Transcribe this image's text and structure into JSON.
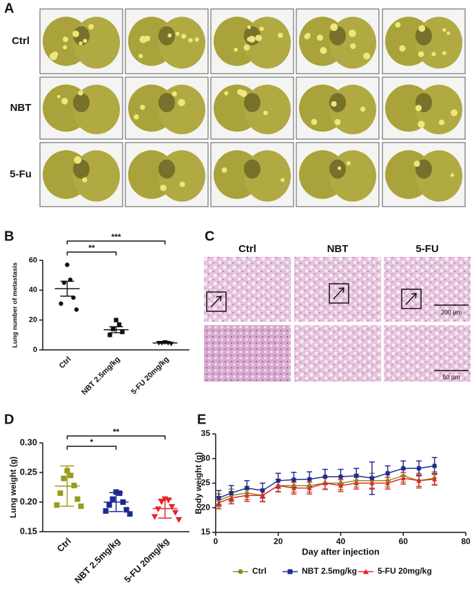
{
  "panels": {
    "A": {
      "label": "A",
      "rows": [
        "Ctrl",
        "NBT",
        "5-Fu"
      ]
    },
    "C": {
      "label": "C",
      "columns": [
        "Ctrl",
        "NBT",
        "5-FU"
      ],
      "scale_bars": [
        "200 µm",
        "50 µm"
      ]
    }
  },
  "chart_data": [
    {
      "type": "dotplot",
      "panel": "B",
      "y_label": "Lung number of metastasis",
      "categories": [
        "Ctrl",
        "NBT 2.5mg/kg",
        "5-FU 20mg/kg"
      ],
      "points": [
        [
          57,
          47,
          45,
          35,
          31,
          27
        ],
        [
          20,
          17,
          14,
          12,
          10
        ],
        [
          5,
          4.5,
          4.5,
          4,
          4.5
        ]
      ],
      "means": [
        41,
        13.5,
        4.6
      ],
      "errors": [
        5,
        2,
        0.2
      ],
      "colors": [
        "#111111",
        "#111111",
        "#111111"
      ],
      "markers": [
        "circle",
        "square",
        "triangle-down"
      ],
      "significance": [
        "**",
        "***"
      ],
      "ylim": [
        0,
        60
      ],
      "yticks": [
        0,
        20,
        40,
        60
      ]
    },
    {
      "type": "dotplot",
      "panel": "D",
      "y_label": "Lung weight (g)",
      "categories": [
        "Ctrl",
        "NBT 2.5mg/kg",
        "5-FU 20mg/kg"
      ],
      "points": [
        [
          0.253,
          0.245,
          0.24,
          0.228,
          0.215,
          0.205,
          0.195,
          0.193
        ],
        [
          0.217,
          0.215,
          0.205,
          0.2,
          0.195,
          0.187,
          0.185,
          0.18
        ],
        [
          0.205,
          0.203,
          0.2,
          0.192,
          0.188,
          0.182,
          0.175,
          0.17
        ]
      ],
      "means": [
        0.227,
        0.2,
        0.189
      ],
      "errors": [
        0.034,
        0.016,
        0.016
      ],
      "colors": [
        "#9a9a1e",
        "#1f2a8f",
        "#e3262b"
      ],
      "markers": [
        "square",
        "square",
        "triangle-down"
      ],
      "significance": [
        "*",
        "**"
      ],
      "ylim": [
        0.15,
        0.3
      ],
      "yticks": [
        0.15,
        {
          "value": 0.2,
          "label": "0.20"
        },
        0.25,
        {
          "value": 0.3,
          "label": "0.30"
        }
      ]
    },
    {
      "type": "line",
      "panel": "E",
      "x_label": "Day after injection",
      "y_label": "Body weight (g)",
      "x": [
        1,
        5,
        10,
        15,
        20,
        25,
        30,
        35,
        40,
        45,
        50,
        55,
        60,
        65,
        70
      ],
      "series": [
        {
          "name": "Ctrl",
          "color": "#8c8c1a",
          "marker": "circle",
          "values": [
            21.5,
            22.5,
            23,
            22.5,
            24.5,
            24.5,
            24.5,
            25,
            25,
            25.5,
            25.5,
            25.5,
            26.5,
            25.5,
            26
          ],
          "errors": [
            1.3,
            1.3,
            1.3,
            1.3,
            1.3,
            1.3,
            1.3,
            1.3,
            1.3,
            1.3,
            1.5,
            1.3,
            1.3,
            1.5,
            1.3
          ]
        },
        {
          "name": "NBT 2.5mg/kg",
          "color": "#1f2a8f",
          "marker": "square",
          "values": [
            22,
            23,
            24,
            23.5,
            25.5,
            25.7,
            25.8,
            26.3,
            26.3,
            26.5,
            26,
            27,
            28,
            28,
            28.5
          ],
          "errors": [
            1.5,
            1.5,
            1.5,
            1.5,
            1.5,
            1.5,
            1.5,
            1.5,
            1.5,
            1.5,
            3.3,
            1.5,
            1.5,
            1.5,
            1.7
          ]
        },
        {
          "name": "5-FU 20mg/kg",
          "color": "#e3262b",
          "marker": "triangle-up",
          "values": [
            21,
            22,
            22.5,
            22.5,
            24.5,
            24,
            24,
            25,
            24.5,
            25,
            25,
            25,
            26,
            25.5,
            25.8
          ],
          "errors": [
            1.2,
            1.2,
            1.2,
            1.2,
            1.2,
            1.2,
            1.2,
            1.2,
            1.2,
            1.2,
            1.2,
            1.2,
            1.2,
            1.2,
            1.2
          ]
        }
      ],
      "xlim": [
        0,
        80
      ],
      "xticks": [
        0,
        20,
        40,
        60,
        80
      ],
      "ylim": [
        15,
        35
      ],
      "yticks": [
        15,
        20,
        25,
        30,
        35
      ],
      "legend": "bottom"
    }
  ]
}
